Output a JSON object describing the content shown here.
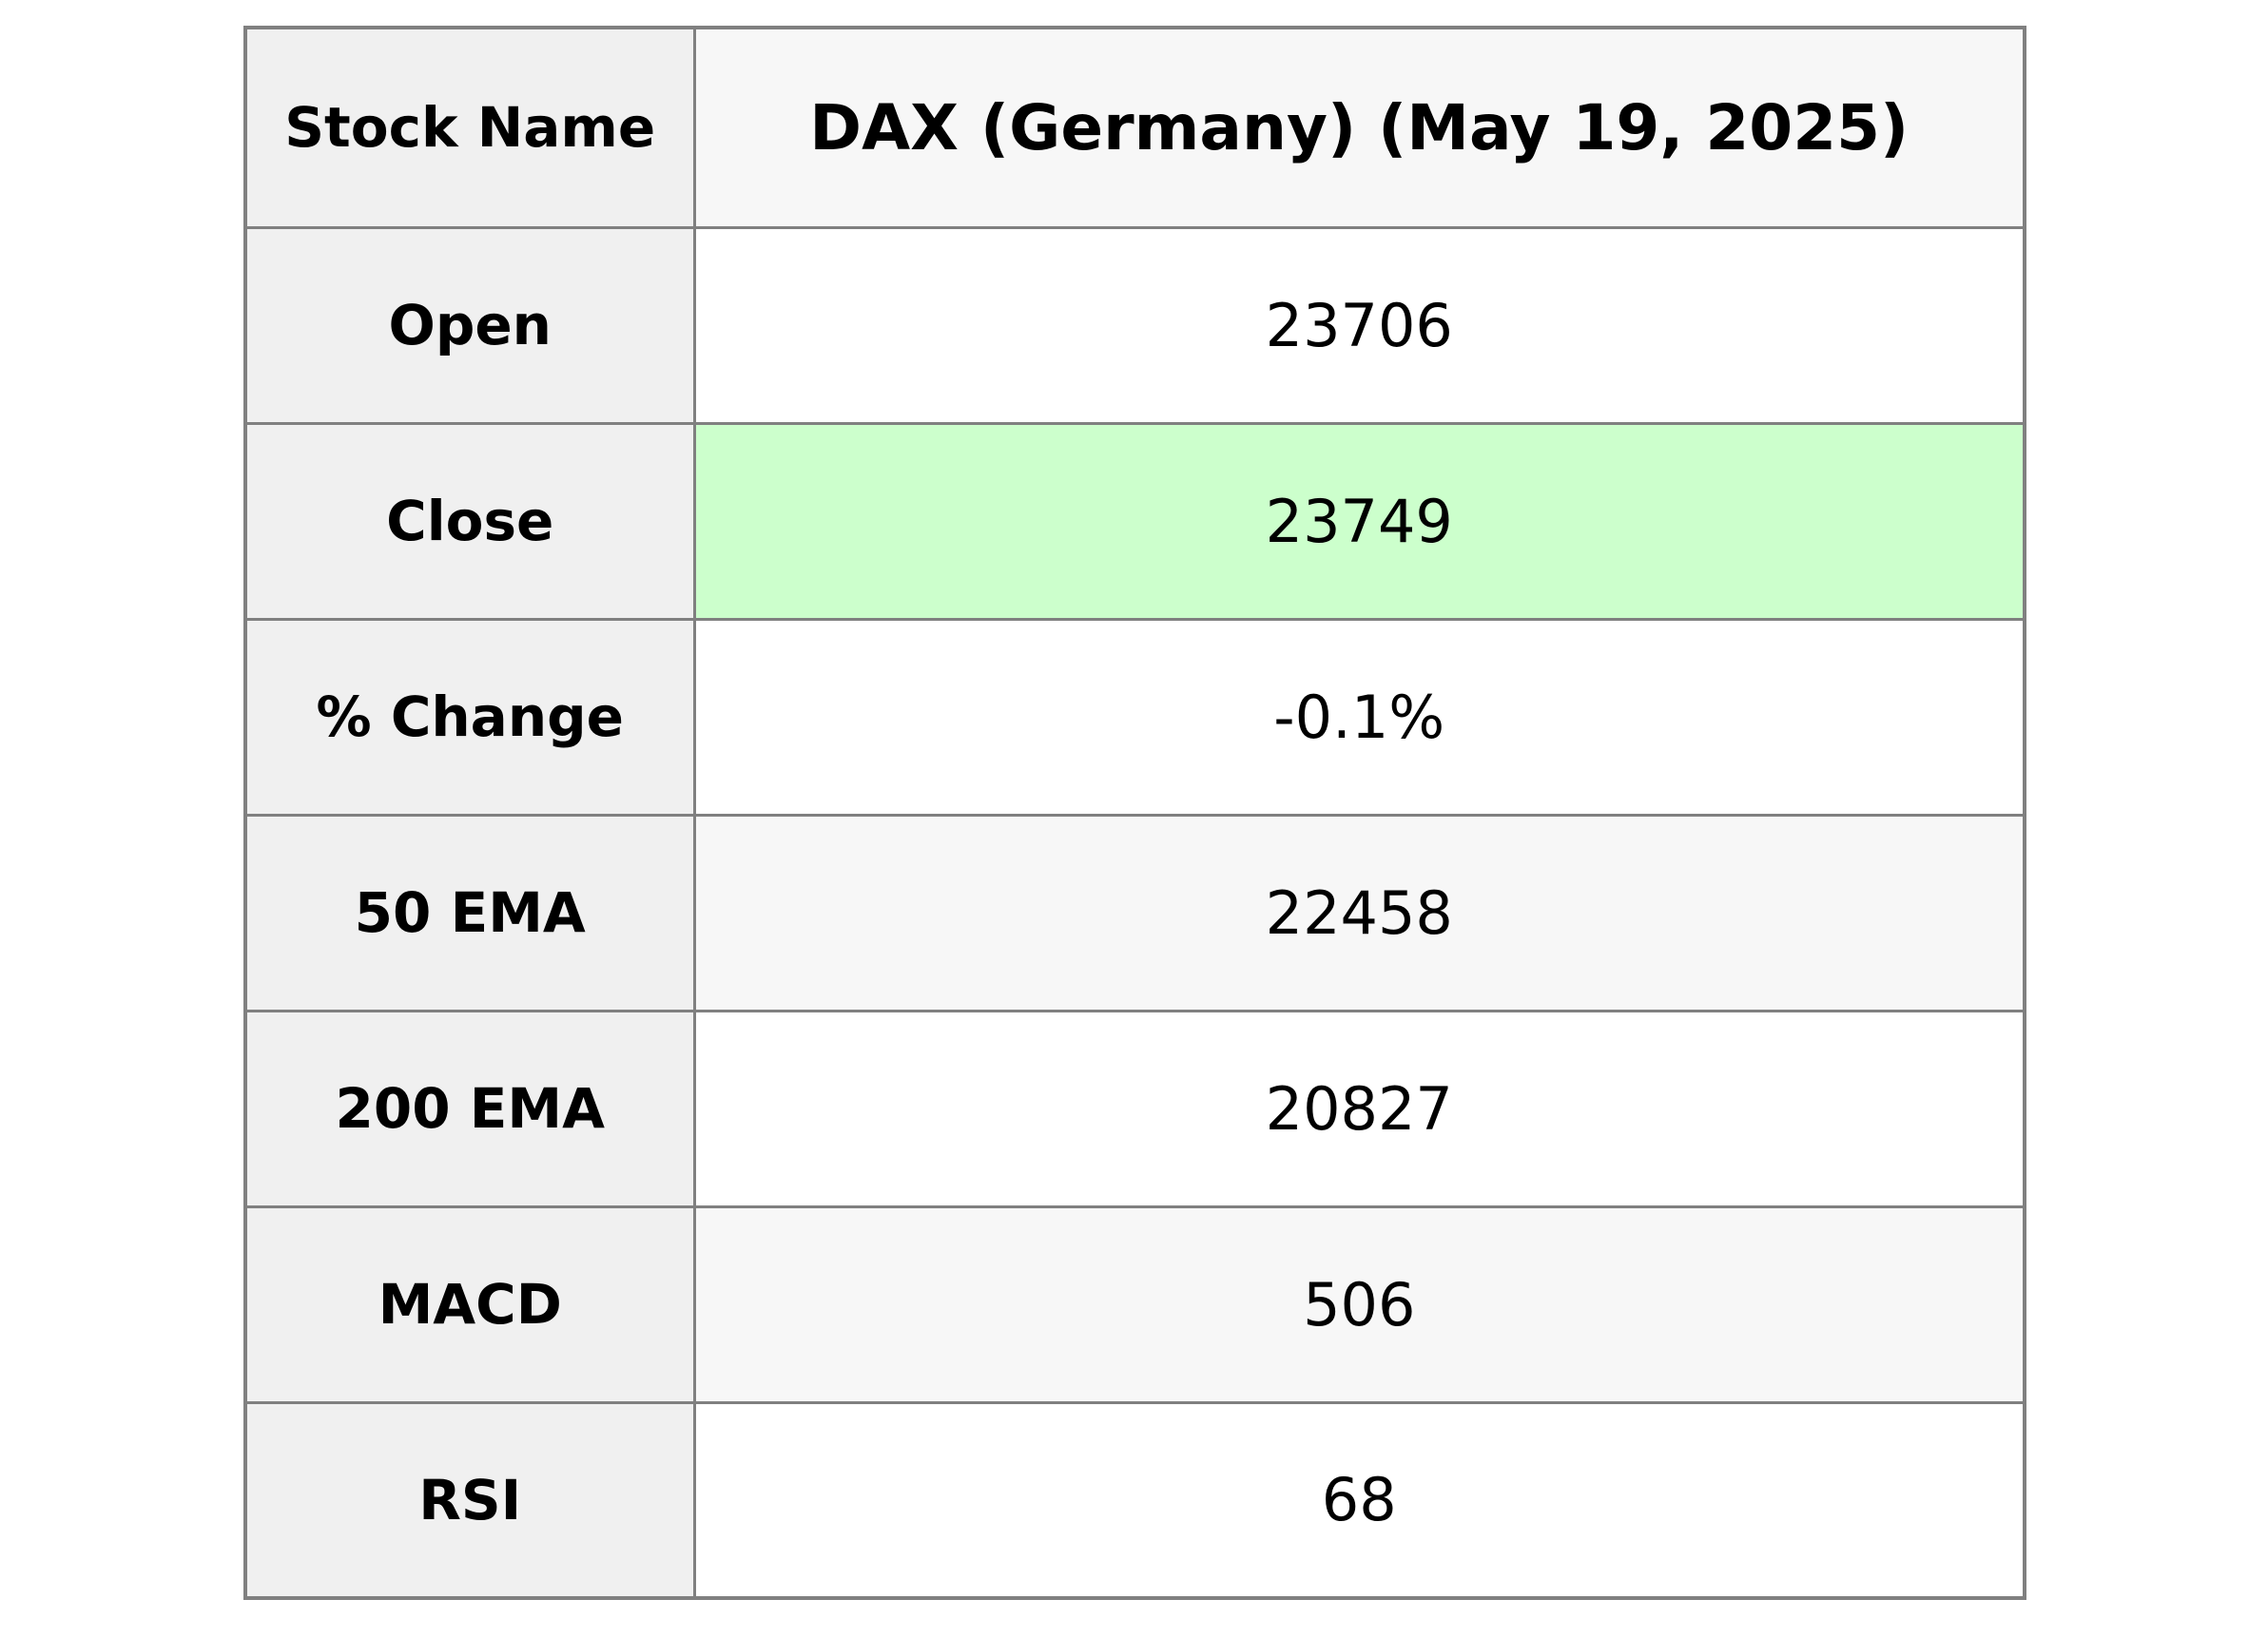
{
  "table": {
    "header": {
      "label": "Stock Name",
      "value": "DAX (Germany) (May 19, 2025)"
    },
    "rows": [
      {
        "label": "Open",
        "value": "23706",
        "highlight": false
      },
      {
        "label": "Close",
        "value": "23749",
        "highlight": true
      },
      {
        "label": "% Change",
        "value": "-0.1%",
        "highlight": false
      },
      {
        "label": "50 EMA",
        "value": "22458",
        "highlight": false
      },
      {
        "label": "200 EMA",
        "value": "20827",
        "highlight": false
      },
      {
        "label": "MACD",
        "value": "506",
        "highlight": false
      },
      {
        "label": "RSI",
        "value": "68",
        "highlight": false
      }
    ],
    "colors": {
      "highlight_green": "#ccffcc",
      "label_bg": "#f0f0f0",
      "stripe_bg": "#f7f7f7",
      "white_bg": "#ffffff",
      "border": "#808080",
      "text": "#000000"
    }
  },
  "chart_data": {
    "type": "table",
    "title": "DAX (Germany) (May 19, 2025)",
    "columns": [
      "Stock Name",
      "DAX (Germany) (May 19, 2025)"
    ],
    "rows": [
      [
        "Open",
        "23706"
      ],
      [
        "Close",
        "23749"
      ],
      [
        "% Change",
        "-0.1%"
      ],
      [
        "50 EMA",
        "22458"
      ],
      [
        "200 EMA",
        "20827"
      ],
      [
        "MACD",
        "506"
      ],
      [
        "RSI",
        "68"
      ]
    ],
    "notes": {
      "highlighted_row": "Close",
      "highlight_color": "#ccffcc",
      "numeric_values": {
        "open": 23706,
        "close": 23749,
        "pct_change": -0.1,
        "ema_50": 22458,
        "ema_200": 20827,
        "macd": 506,
        "rsi": 68
      }
    }
  }
}
